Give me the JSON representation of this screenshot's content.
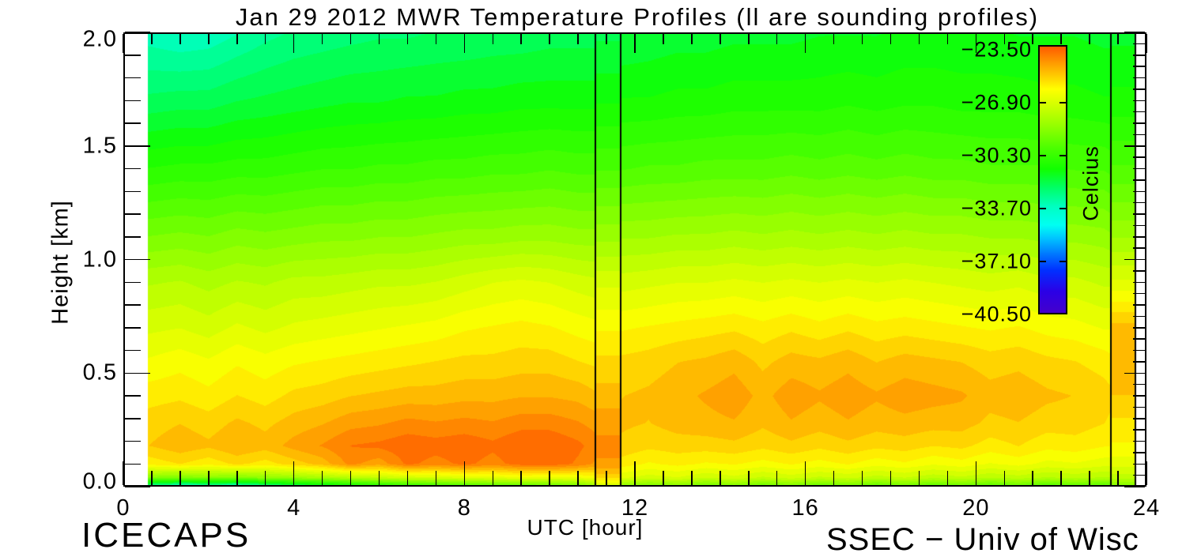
{
  "title": "Jan 29 2012 MWR Temperature Profiles (ll are sounding profiles)",
  "footer": {
    "left": "ICECAPS",
    "right": "SSEC − Univ of Wisc"
  },
  "axes": {
    "x": {
      "label": "UTC [hour]",
      "min": 0,
      "max": 24,
      "major_ticks": [
        "0",
        "4",
        "8",
        "12",
        "16",
        "20",
        "24"
      ],
      "minor_divisions_per_major": 6
    },
    "y": {
      "label": "Height [km]",
      "min": 0.0,
      "max": 2.0,
      "major_ticks": [
        "0.0",
        "0.5",
        "1.0",
        "1.5",
        "2.0"
      ],
      "minor_divisions_per_major": 5,
      "right_axis_minor_step_km": 0.05
    }
  },
  "colorbar": {
    "title": "Celcius",
    "tick_labels": [
      "−23.50",
      "−26.90",
      "−30.30",
      "−33.70",
      "−37.10",
      "−40.50"
    ],
    "max_c": -23.5,
    "min_c": -40.5
  },
  "chart_data": {
    "type": "heatmap",
    "title": "Jan 29 2012 MWR Temperature Profiles (ll are sounding profiles)",
    "xlabel": "UTC [hour]",
    "ylabel": "Height [km]",
    "units": "Celcius",
    "xlim": [
      0,
      24
    ],
    "ylim": [
      0.0,
      2.0
    ],
    "data_start_utc": 0.57,
    "data_end_utc": 23.74,
    "sounding_lines_utc": [
      11.07,
      11.67,
      23.17,
      23.74
    ],
    "heights_km": [
      0.0,
      0.04,
      0.1,
      0.18,
      0.28,
      0.4,
      0.55,
      0.7,
      0.9,
      1.1,
      1.4,
      1.7,
      2.0
    ],
    "x_hours": [
      0.57,
      1.33,
      2.0,
      2.67,
      3.33,
      4.0,
      4.67,
      5.33,
      6.0,
      6.67,
      7.33,
      8.0,
      8.67,
      9.33,
      10.0,
      10.67,
      11.06,
      11.08,
      11.66,
      11.68,
      12.33,
      13.0,
      13.67,
      14.33,
      15.0,
      15.67,
      16.33,
      17.0,
      17.67,
      18.33,
      19.0,
      19.67,
      20.33,
      21.0,
      21.67,
      22.33,
      23.0,
      23.16,
      23.18,
      23.74
    ],
    "temperature_c": [
      [
        -33.4,
        -28.8,
        -26.0,
        -25.3,
        -25.5,
        -25.9,
        -26.5,
        -27.1,
        -27.9,
        -29.1,
        -30.8,
        -32.4,
        -33.6
      ],
      [
        -34.3,
        -29.0,
        -25.7,
        -25.0,
        -25.3,
        -25.8,
        -26.3,
        -27.0,
        -27.8,
        -29.0,
        -30.7,
        -32.3,
        -33.8
      ],
      [
        -34.0,
        -28.7,
        -26.0,
        -25.2,
        -25.5,
        -26.0,
        -26.5,
        -27.2,
        -28.0,
        -29.1,
        -30.7,
        -32.3,
        -33.7
      ],
      [
        -34.2,
        -28.9,
        -25.6,
        -24.9,
        -25.2,
        -25.7,
        -26.2,
        -26.9,
        -27.8,
        -28.9,
        -30.6,
        -32.1,
        -33.4
      ],
      [
        -33.4,
        -28.6,
        -25.9,
        -25.1,
        -25.4,
        -25.9,
        -26.4,
        -27.1,
        -27.9,
        -29.0,
        -30.6,
        -32.0,
        -33.1
      ],
      [
        -32.8,
        -28.4,
        -25.5,
        -24.7,
        -25.1,
        -25.6,
        -26.2,
        -26.9,
        -27.7,
        -28.9,
        -30.5,
        -31.9,
        -32.9
      ],
      [
        -32.3,
        -28.1,
        -25.1,
        -24.4,
        -24.9,
        -25.5,
        -26.1,
        -26.8,
        -27.7,
        -28.8,
        -30.4,
        -31.8,
        -32.8
      ],
      [
        -31.7,
        -27.8,
        -24.3,
        -24.0,
        -24.6,
        -25.3,
        -26.0,
        -26.7,
        -27.6,
        -28.8,
        -30.4,
        -31.7,
        -32.7
      ],
      [
        -31.3,
        -27.5,
        -24.7,
        -23.9,
        -24.5,
        -25.2,
        -25.9,
        -26.6,
        -27.5,
        -28.7,
        -30.3,
        -31.7,
        -32.6
      ],
      [
        -30.9,
        -27.2,
        -23.9,
        -23.7,
        -24.3,
        -25.1,
        -25.8,
        -26.5,
        -27.5,
        -28.7,
        -30.3,
        -31.6,
        -32.6
      ],
      [
        -30.6,
        -27.1,
        -24.2,
        -23.8,
        -24.4,
        -25.1,
        -25.7,
        -26.4,
        -27.4,
        -28.6,
        -30.2,
        -31.6,
        -32.5
      ],
      [
        -30.3,
        -26.9,
        -23.9,
        -23.7,
        -24.3,
        -25.0,
        -25.6,
        -26.2,
        -27.2,
        -28.5,
        -30.2,
        -31.5,
        -32.5
      ],
      [
        -30.1,
        -26.8,
        -24.2,
        -23.9,
        -24.4,
        -25.0,
        -25.6,
        -26.1,
        -27.0,
        -28.5,
        -30.1,
        -31.5,
        -32.4
      ],
      [
        -29.9,
        -26.6,
        -23.8,
        -23.6,
        -24.2,
        -24.9,
        -25.5,
        -26.0,
        -26.9,
        -28.4,
        -30.1,
        -31.4,
        -32.4
      ],
      [
        -29.7,
        -26.7,
        -23.7,
        -23.6,
        -24.2,
        -24.9,
        -25.5,
        -26.1,
        -27.0,
        -28.4,
        -30.0,
        -31.4,
        -32.3
      ],
      [
        -29.4,
        -26.6,
        -24.1,
        -23.9,
        -24.4,
        -25.0,
        -25.7,
        -26.3,
        -27.2,
        -28.5,
        -30.1,
        -31.4,
        -32.3
      ],
      [
        -28.6,
        -26.4,
        -24.5,
        -24.2,
        -24.6,
        -25.2,
        -25.8,
        -26.4,
        -27.3,
        -28.5,
        -30.1,
        -31.4,
        -32.3
      ],
      [
        -27.4,
        -25.6,
        -24.5,
        -24.3,
        -24.6,
        -25.1,
        -25.6,
        -26.2,
        -27.1,
        -28.4,
        -30.0,
        -31.3,
        -32.2
      ],
      [
        -27.4,
        -25.6,
        -24.5,
        -24.3,
        -24.6,
        -25.1,
        -25.6,
        -26.2,
        -27.1,
        -28.4,
        -30.0,
        -31.3,
        -32.2
      ],
      [
        -28.8,
        -26.9,
        -25.9,
        -25.4,
        -25.2,
        -25.3,
        -25.6,
        -26.2,
        -27.2,
        -28.3,
        -30.0,
        -31.2,
        -32.1
      ],
      [
        -29.3,
        -27.2,
        -26.2,
        -25.6,
        -25.3,
        -25.2,
        -25.5,
        -26.1,
        -27.1,
        -28.3,
        -29.9,
        -31.2,
        -32.0
      ],
      [
        -29.0,
        -27.0,
        -26.0,
        -25.5,
        -25.1,
        -25.0,
        -25.3,
        -26.0,
        -27.0,
        -28.2,
        -29.9,
        -31.1,
        -31.9
      ],
      [
        -29.5,
        -27.4,
        -26.2,
        -25.5,
        -25.0,
        -24.8,
        -25.2,
        -25.9,
        -27.0,
        -28.2,
        -29.8,
        -31.1,
        -31.9
      ],
      [
        -29.1,
        -27.1,
        -26.1,
        -25.4,
        -24.9,
        -24.6,
        -25.0,
        -25.8,
        -26.9,
        -28.1,
        -29.8,
        -31.0,
        -31.8
      ],
      [
        -29.6,
        -27.5,
        -26.3,
        -25.6,
        -25.2,
        -25.0,
        -25.4,
        -26.0,
        -27.0,
        -28.2,
        -29.8,
        -31.0,
        -31.8
      ],
      [
        -29.2,
        -27.2,
        -26.1,
        -25.4,
        -24.9,
        -24.6,
        -25.1,
        -25.8,
        -26.9,
        -28.1,
        -29.7,
        -31.0,
        -31.8
      ],
      [
        -29.7,
        -27.5,
        -26.3,
        -25.6,
        -25.1,
        -24.8,
        -25.2,
        -26.0,
        -27.0,
        -28.2,
        -29.8,
        -31.0,
        -31.7
      ],
      [
        -29.3,
        -27.3,
        -26.1,
        -25.4,
        -24.9,
        -24.6,
        -25.0,
        -25.8,
        -26.9,
        -28.1,
        -29.7,
        -30.9,
        -31.7
      ],
      [
        -29.8,
        -27.6,
        -26.4,
        -25.6,
        -25.1,
        -24.8,
        -25.3,
        -26.0,
        -27.0,
        -28.2,
        -29.8,
        -31.0,
        -31.7
      ],
      [
        -29.4,
        -27.4,
        -26.2,
        -25.5,
        -25.0,
        -24.6,
        -25.1,
        -25.9,
        -26.9,
        -28.1,
        -29.7,
        -30.9,
        -31.6
      ],
      [
        -29.9,
        -27.7,
        -26.5,
        -25.7,
        -25.1,
        -24.7,
        -25.2,
        -26.0,
        -27.0,
        -28.2,
        -29.8,
        -30.9,
        -31.6
      ],
      [
        -29.5,
        -27.5,
        -26.3,
        -25.6,
        -25.1,
        -24.8,
        -25.3,
        -26.1,
        -27.1,
        -28.2,
        -29.8,
        -31.0,
        -31.6
      ],
      [
        -30.0,
        -27.8,
        -26.6,
        -25.9,
        -25.4,
        -25.1,
        -25.5,
        -26.2,
        -27.2,
        -28.3,
        -29.9,
        -31.0,
        -31.6
      ],
      [
        -29.6,
        -27.6,
        -26.4,
        -25.7,
        -25.3,
        -25.0,
        -25.4,
        -26.1,
        -27.1,
        -28.3,
        -29.9,
        -31.0,
        -31.7
      ],
      [
        -30.1,
        -27.9,
        -26.7,
        -26.0,
        -25.5,
        -25.2,
        -25.6,
        -26.3,
        -27.3,
        -28.4,
        -29.9,
        -31.1,
        -31.7
      ],
      [
        -29.8,
        -27.7,
        -26.6,
        -25.9,
        -25.5,
        -25.3,
        -25.7,
        -26.4,
        -27.3,
        -28.4,
        -30.0,
        -31.1,
        -31.7
      ],
      [
        -30.0,
        -27.9,
        -26.8,
        -26.1,
        -25.7,
        -25.5,
        -25.9,
        -26.6,
        -27.5,
        -28.5,
        -30.0,
        -31.2,
        -31.8
      ],
      [
        -29.9,
        -27.9,
        -26.8,
        -26.1,
        -25.8,
        -25.6,
        -26.0,
        -26.6,
        -27.5,
        -28.6,
        -30.1,
        -31.2,
        -31.8
      ],
      [
        -29.1,
        -27.6,
        -26.8,
        -26.2,
        -25.8,
        -25.3,
        -24.9,
        -25.1,
        -26.9,
        -28.3,
        -29.9,
        -31.1,
        -31.8
      ],
      [
        -29.1,
        -27.6,
        -26.8,
        -26.2,
        -25.8,
        -25.3,
        -24.9,
        -25.1,
        -26.9,
        -28.3,
        -29.9,
        -31.1,
        -31.8
      ]
    ],
    "colormap": {
      "quantize_step_c": 0.425,
      "stops": [
        {
          "f": 0.0,
          "c": "#4400CC"
        },
        {
          "f": 0.08,
          "c": "#2B00E6"
        },
        {
          "f": 0.16,
          "c": "#0030FF"
        },
        {
          "f": 0.22,
          "c": "#0077FF"
        },
        {
          "f": 0.28,
          "c": "#00C4FF"
        },
        {
          "f": 0.33,
          "c": "#00FFF2"
        },
        {
          "f": 0.4,
          "c": "#00FFC0"
        },
        {
          "f": 0.47,
          "c": "#00FF66"
        },
        {
          "f": 0.54,
          "c": "#11FF00"
        },
        {
          "f": 0.62,
          "c": "#4CFF00"
        },
        {
          "f": 0.7,
          "c": "#92FF00"
        },
        {
          "f": 0.78,
          "c": "#D2FF00"
        },
        {
          "f": 0.84,
          "c": "#FFFF00"
        },
        {
          "f": 0.89,
          "c": "#FFCC00"
        },
        {
          "f": 0.94,
          "c": "#FF9900"
        },
        {
          "f": 1.0,
          "c": "#FF5A00"
        }
      ]
    }
  }
}
